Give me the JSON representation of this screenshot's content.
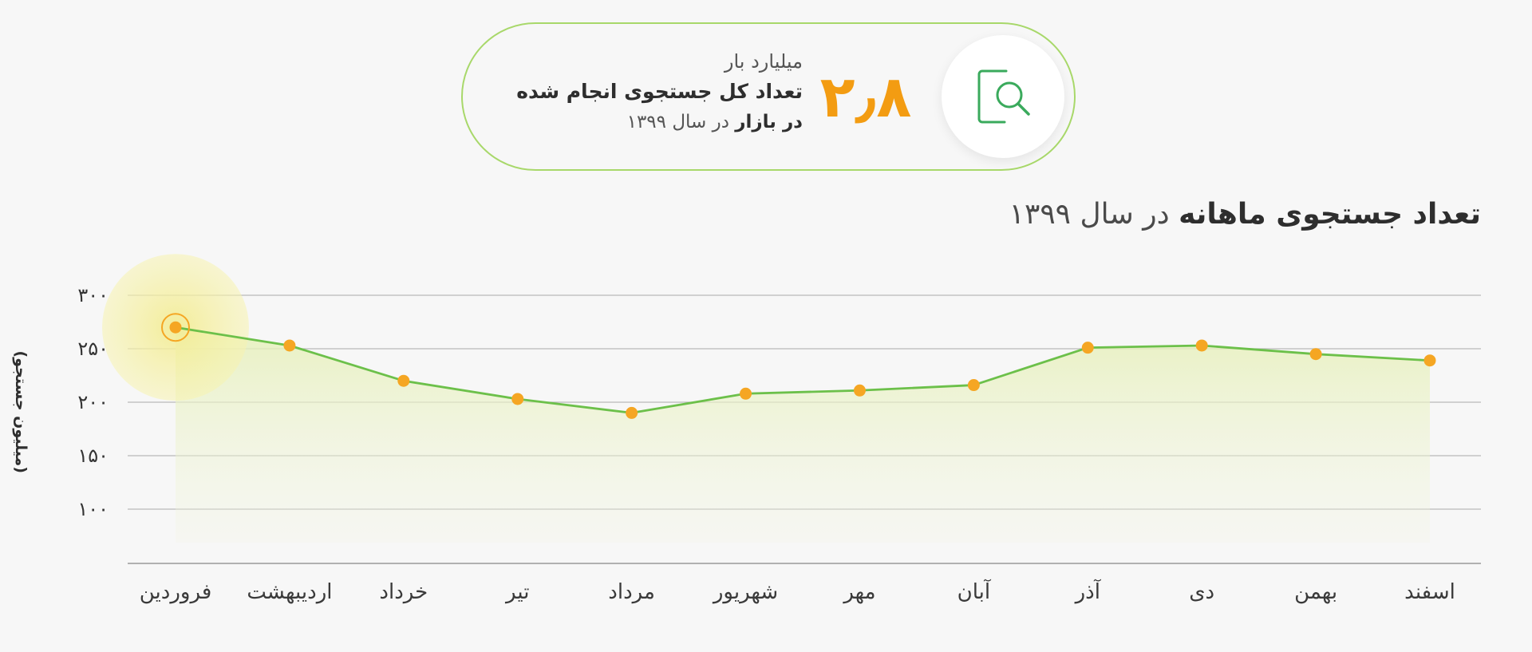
{
  "stat": {
    "value": "۲٫۸",
    "unit": "میلیارد بار",
    "title": "تعداد کل جستجوی انجام شده",
    "sub_bold": "در بازار",
    "sub_rest": "در سال ۱۳۹۹",
    "icon": "search-document-icon"
  },
  "heading": {
    "bold": "تعداد جستجوی ماهانه",
    "rest": "در سال ۱۳۹۹"
  },
  "colors": {
    "line": "#6cc04a",
    "point": "#f5a623",
    "number": "#f39c12",
    "card_border": "#a8d86a",
    "highlight": "#f7f3b0"
  },
  "chart_data": {
    "type": "line",
    "ylabel": "(میلیون جستجو)",
    "y_ticks": [
      "۳۰۰",
      "۲۵۰",
      "۲۰۰",
      "۱۵۰",
      "۱۰۰"
    ],
    "y_tick_values": [
      300,
      250,
      200,
      150,
      100
    ],
    "ylim": [
      50,
      300
    ],
    "grid": true,
    "categories": [
      "فروردین",
      "اردیبهشت",
      "خرداد",
      "تیر",
      "مرداد",
      "شهریور",
      "مهر",
      "آبان",
      "آذر",
      "دی",
      "بهمن",
      "اسفند"
    ],
    "values": [
      270,
      253,
      220,
      203,
      190,
      208,
      211,
      216,
      251,
      253,
      245,
      239
    ],
    "highlighted_index": 0
  }
}
